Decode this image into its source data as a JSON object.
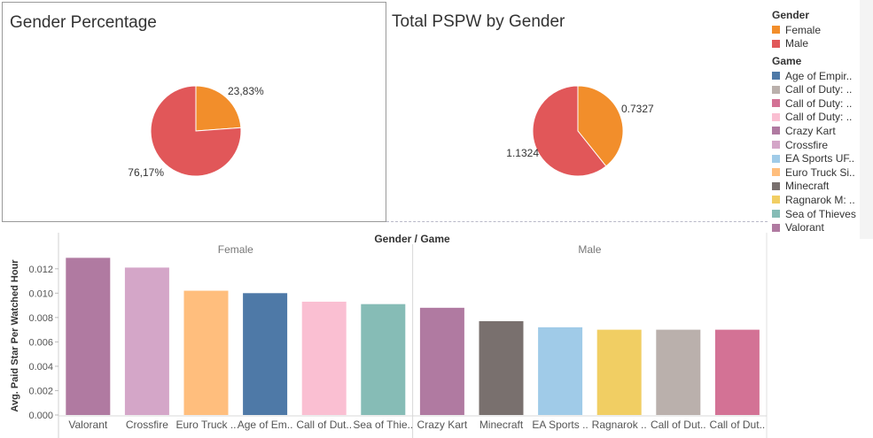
{
  "pie_gender": {
    "title": "Gender Percentage",
    "labels": [
      "23,83%",
      "76,17%"
    ]
  },
  "pie_pspw": {
    "title": "Total PSPW by Gender",
    "labels": [
      "0.7327",
      "1.1324"
    ]
  },
  "legend": {
    "gender_title": "Gender",
    "gender_items": [
      {
        "label": "Female",
        "color": "#f28e2b"
      },
      {
        "label": "Male",
        "color": "#e15759"
      }
    ],
    "game_title": "Game",
    "game_items": [
      {
        "label": "Age of Empir..",
        "color": "#4e79a7"
      },
      {
        "label": "Call of Duty: ..",
        "color": "#bab0ac"
      },
      {
        "label": "Call of Duty: ..",
        "color": "#d37295"
      },
      {
        "label": "Call of Duty: ..",
        "color": "#fabfd2"
      },
      {
        "label": "Crazy Kart",
        "color": "#b07aa1"
      },
      {
        "label": "Crossfire",
        "color": "#d4a6c8"
      },
      {
        "label": "EA Sports UF..",
        "color": "#a0cbe8"
      },
      {
        "label": "Euro Truck Si..",
        "color": "#ffbe7d"
      },
      {
        "label": "Minecraft",
        "color": "#79706e"
      },
      {
        "label": "Ragnarok M: ..",
        "color": "#f1ce63"
      },
      {
        "label": "Sea of Thieves",
        "color": "#86bcb6"
      },
      {
        "label": "Valorant",
        "color": "#b07aa1"
      }
    ]
  },
  "chart_data": [
    {
      "type": "pie",
      "title": "Gender Percentage",
      "slices": [
        {
          "name": "Female",
          "value": 23.83,
          "label": "23,83%",
          "color": "#f28e2b"
        },
        {
          "name": "Male",
          "value": 76.17,
          "label": "76,17%",
          "color": "#e15759"
        }
      ]
    },
    {
      "type": "pie",
      "title": "Total PSPW by Gender",
      "slices": [
        {
          "name": "Female",
          "value": 0.7327,
          "label": "0.7327",
          "color": "#f28e2b"
        },
        {
          "name": "Male",
          "value": 1.1324,
          "label": "1.1324",
          "color": "#e15759"
        }
      ]
    },
    {
      "type": "bar",
      "header": "Gender / Game",
      "ylabel": "Avg. Paid Star Per Watched Hour",
      "ylim": [
        0,
        0.013
      ],
      "yticks": [
        0.0,
        0.002,
        0.004,
        0.006,
        0.008,
        0.01,
        0.012
      ],
      "ytick_labels": [
        "0.000",
        "0.002",
        "0.004",
        "0.006",
        "0.008",
        "0.010",
        "0.012"
      ],
      "groups": [
        {
          "name": "Female",
          "bars": [
            {
              "category": "Valorant",
              "value": 0.0129,
              "color": "#b07aa1"
            },
            {
              "category": "Crossfire",
              "value": 0.0121,
              "color": "#d4a6c8"
            },
            {
              "category": "Euro Truck ..",
              "value": 0.0102,
              "color": "#ffbe7d"
            },
            {
              "category": "Age of Em..",
              "value": 0.01,
              "color": "#4e79a7"
            },
            {
              "category": "Call of Dut..",
              "value": 0.0093,
              "color": "#fabfd2"
            },
            {
              "category": "Sea of Thie..",
              "value": 0.0091,
              "color": "#86bcb6"
            }
          ]
        },
        {
          "name": "Male",
          "bars": [
            {
              "category": "Crazy Kart",
              "value": 0.0088,
              "color": "#b07aa1"
            },
            {
              "category": "Minecraft",
              "value": 0.0077,
              "color": "#79706e"
            },
            {
              "category": "EA Sports ..",
              "value": 0.0072,
              "color": "#a0cbe8"
            },
            {
              "category": "Ragnarok ..",
              "value": 0.007,
              "color": "#f1ce63"
            },
            {
              "category": "Call of Dut..",
              "value": 0.007,
              "color": "#bab0ac"
            },
            {
              "category": "Call of Dut..",
              "value": 0.007,
              "color": "#d37295"
            }
          ]
        }
      ]
    }
  ]
}
